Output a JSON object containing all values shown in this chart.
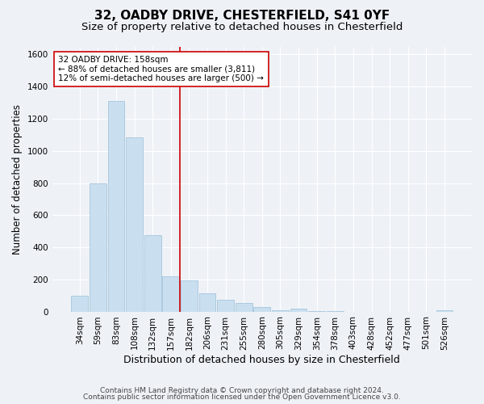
{
  "title1": "32, OADBY DRIVE, CHESTERFIELD, S41 0YF",
  "title2": "Size of property relative to detached houses in Chesterfield",
  "xlabel": "Distribution of detached houses by size in Chesterfield",
  "ylabel": "Number of detached properties",
  "categories": [
    "34sqm",
    "59sqm",
    "83sqm",
    "108sqm",
    "132sqm",
    "157sqm",
    "182sqm",
    "206sqm",
    "231sqm",
    "255sqm",
    "280sqm",
    "305sqm",
    "329sqm",
    "354sqm",
    "378sqm",
    "403sqm",
    "428sqm",
    "452sqm",
    "477sqm",
    "501sqm",
    "526sqm"
  ],
  "values": [
    100,
    800,
    1310,
    1085,
    475,
    220,
    195,
    115,
    75,
    55,
    28,
    8,
    18,
    3,
    2,
    0,
    0,
    0,
    0,
    0,
    8
  ],
  "bar_color": "#c9dff0",
  "bar_edge_color": "#9bbdd6",
  "vline_x": 5.5,
  "vline_color": "#cc0000",
  "annotation_line1": "32 OADBY DRIVE: 158sqm",
  "annotation_line2": "← 88% of detached houses are smaller (3,811)",
  "annotation_line3": "12% of semi-detached houses are larger (500) →",
  "annotation_box_color": "white",
  "annotation_edge_color": "#cc0000",
  "ylim": [
    0,
    1650
  ],
  "yticks": [
    0,
    200,
    400,
    600,
    800,
    1000,
    1200,
    1400,
    1600
  ],
  "background_color": "#eef2f7",
  "plot_bg_color": "#eef2f7",
  "grid_color": "#ffffff",
  "footer_text1": "Contains HM Land Registry data © Crown copyright and database right 2024.",
  "footer_text2": "Contains public sector information licensed under the Open Government Licence v3.0.",
  "title1_fontsize": 11,
  "title2_fontsize": 9.5,
  "xlabel_fontsize": 9,
  "ylabel_fontsize": 8.5,
  "tick_fontsize": 7.5,
  "footer_fontsize": 6.5,
  "annotation_fontsize": 7.5
}
